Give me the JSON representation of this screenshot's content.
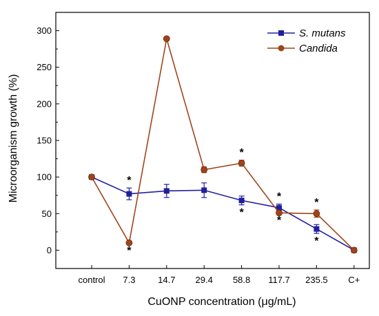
{
  "chart_data": {
    "type": "line",
    "title": "",
    "xlabel": "CuONP concentration (μg/mL)",
    "ylabel": "Microorganism growth (%)",
    "categories": [
      "control",
      "7.3",
      "14.7",
      "29.4",
      "58.8",
      "117.7",
      "235.5",
      "C+"
    ],
    "ylim": [
      -25,
      325
    ],
    "yticks": [
      0,
      50,
      100,
      150,
      200,
      250,
      300
    ],
    "grid": false,
    "legend_position": "top-right",
    "series": [
      {
        "name": "S. mutans",
        "marker": "square",
        "color": "#1f1f9e",
        "values": [
          100,
          77,
          81,
          82,
          68,
          58,
          29,
          0
        ],
        "errors": [
          0,
          8,
          9,
          10,
          6,
          5,
          6,
          0
        ],
        "significance": [
          null,
          "above",
          null,
          null,
          "below",
          "above",
          "below",
          null
        ]
      },
      {
        "name": "Candida",
        "marker": "circle",
        "color": "#a0441c",
        "values": [
          100,
          10,
          289,
          110,
          119,
          51,
          50,
          0
        ],
        "errors": [
          0,
          0,
          0,
          4,
          4,
          0,
          5,
          0
        ],
        "significance": [
          null,
          "below",
          null,
          null,
          "above",
          "below",
          "above",
          null
        ]
      }
    ],
    "significance_symbol": "*"
  }
}
